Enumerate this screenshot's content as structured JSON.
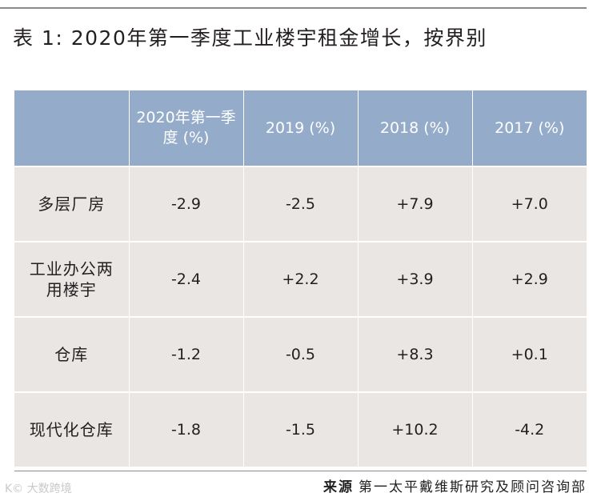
{
  "title": "表 1: 2020年第一季度工业楼宇租金增长，按界别",
  "table": {
    "headers": [
      "",
      "2020年第一季度 (%)",
      "2019 (%)",
      "2018 (%)",
      "2017 (%)"
    ],
    "rows": [
      {
        "label": "多层厂房",
        "values": [
          "-2.9",
          "-2.5",
          "+7.9",
          "+7.0"
        ]
      },
      {
        "label": "工业办公两用楼宇",
        "values": [
          "-2.4",
          "+2.2",
          "+3.9",
          "+2.9"
        ]
      },
      {
        "label": "仓库",
        "values": [
          "-1.2",
          "-0.5",
          "+8.3",
          "+0.1"
        ]
      },
      {
        "label": "现代化仓库",
        "values": [
          "-1.8",
          "-1.5",
          "+10.2",
          "-4.2"
        ]
      }
    ]
  },
  "source": {
    "label": "来源",
    "text": "第一太平戴维斯研究及顾问咨询部"
  },
  "watermark": "K© 大数跨境"
}
